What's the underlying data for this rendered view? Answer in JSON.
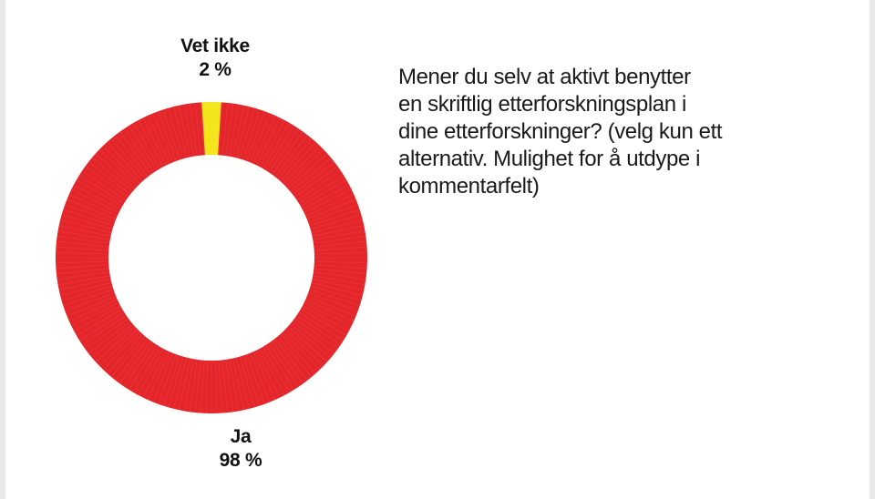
{
  "chart_data": {
    "type": "pie",
    "variant": "donut",
    "slices": [
      {
        "label": "Vet ikke",
        "value": 2,
        "value_label": "2 %",
        "color": "#f3e51a"
      },
      {
        "label": "Ja",
        "value": 98,
        "value_label": "98 %",
        "color": "#e4262b"
      }
    ],
    "legend": "none"
  },
  "question_lines": [
    "Mener du selv at aktivt benytter",
    "en skriftlig etterforskningsplan i",
    "dine etterforskninger? (velg kun ett",
    "alternativ. Mulighet for å utdype i",
    "kommentarfelt)"
  ]
}
